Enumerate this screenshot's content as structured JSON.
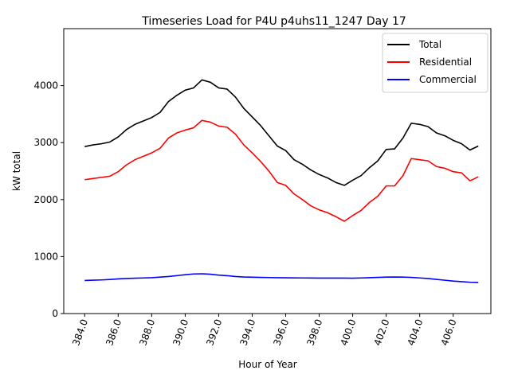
{
  "chart_data": {
    "type": "line",
    "title": "Timeseries Load for P4U p4uhs11_1247  Day 17",
    "xlabel": "Hour of Year",
    "ylabel": "kW total",
    "xlim": [
      382.75,
      408.25
    ],
    "ylim": [
      0,
      5000
    ],
    "xticks": [
      384,
      386,
      388,
      390,
      392,
      394,
      396,
      398,
      400,
      402,
      404,
      406
    ],
    "xtick_labels": [
      "384.0",
      "386.0",
      "388.0",
      "390.0",
      "392.0",
      "394.0",
      "396.0",
      "398.0",
      "400.0",
      "402.0",
      "404.0",
      "406.0"
    ],
    "yticks": [
      0,
      1000,
      2000,
      3000,
      4000
    ],
    "ytick_labels": [
      "0",
      "1000",
      "2000",
      "3000",
      "4000"
    ],
    "grid": false,
    "legend_position": "top-right",
    "x": [
      384.0,
      384.5,
      385.0,
      385.5,
      386.0,
      386.5,
      387.0,
      387.5,
      388.0,
      388.5,
      389.0,
      389.5,
      390.0,
      390.5,
      391.0,
      391.5,
      392.0,
      392.5,
      393.0,
      393.5,
      394.0,
      394.5,
      395.0,
      395.5,
      396.0,
      396.5,
      397.0,
      397.5,
      398.0,
      398.5,
      399.0,
      399.5,
      400.0,
      400.5,
      401.0,
      401.5,
      402.0,
      402.5,
      403.0,
      403.5,
      404.0,
      404.5,
      405.0,
      405.5,
      406.0,
      406.5,
      407.0,
      407.5
    ],
    "series": [
      {
        "name": "Total",
        "color": "#000000",
        "values": [
          2930,
          2960,
          2980,
          3010,
          3100,
          3230,
          3320,
          3380,
          3440,
          3530,
          3720,
          3830,
          3920,
          3960,
          4100,
          4060,
          3960,
          3940,
          3800,
          3600,
          3450,
          3300,
          3120,
          2940,
          2860,
          2700,
          2620,
          2520,
          2440,
          2380,
          2300,
          2250,
          2340,
          2420,
          2560,
          2680,
          2880,
          2890,
          3080,
          3340,
          3320,
          3280,
          3170,
          3120,
          3040,
          2980,
          2870,
          2940
        ]
      },
      {
        "name": "Residential",
        "color": "#ff0000",
        "values": [
          2350,
          2370,
          2390,
          2410,
          2490,
          2610,
          2700,
          2760,
          2820,
          2900,
          3080,
          3170,
          3220,
          3260,
          3390,
          3360,
          3290,
          3270,
          3150,
          2960,
          2820,
          2670,
          2500,
          2300,
          2250,
          2100,
          2000,
          1890,
          1820,
          1770,
          1700,
          1620,
          1720,
          1810,
          1950,
          2060,
          2240,
          2240,
          2420,
          2720,
          2700,
          2680,
          2580,
          2550,
          2490,
          2470,
          2330,
          2400
        ]
      },
      {
        "name": "Commercial",
        "color": "#0000ff",
        "values": [
          580,
          585,
          590,
          598,
          608,
          615,
          620,
          625,
          630,
          640,
          650,
          665,
          682,
          695,
          698,
          690,
          675,
          665,
          650,
          642,
          638,
          635,
          632,
          630,
          628,
          626,
          625,
          624,
          622,
          622,
          622,
          622,
          620,
          625,
          630,
          635,
          640,
          642,
          640,
          635,
          625,
          615,
          600,
          585,
          570,
          560,
          550,
          545
        ]
      }
    ]
  }
}
